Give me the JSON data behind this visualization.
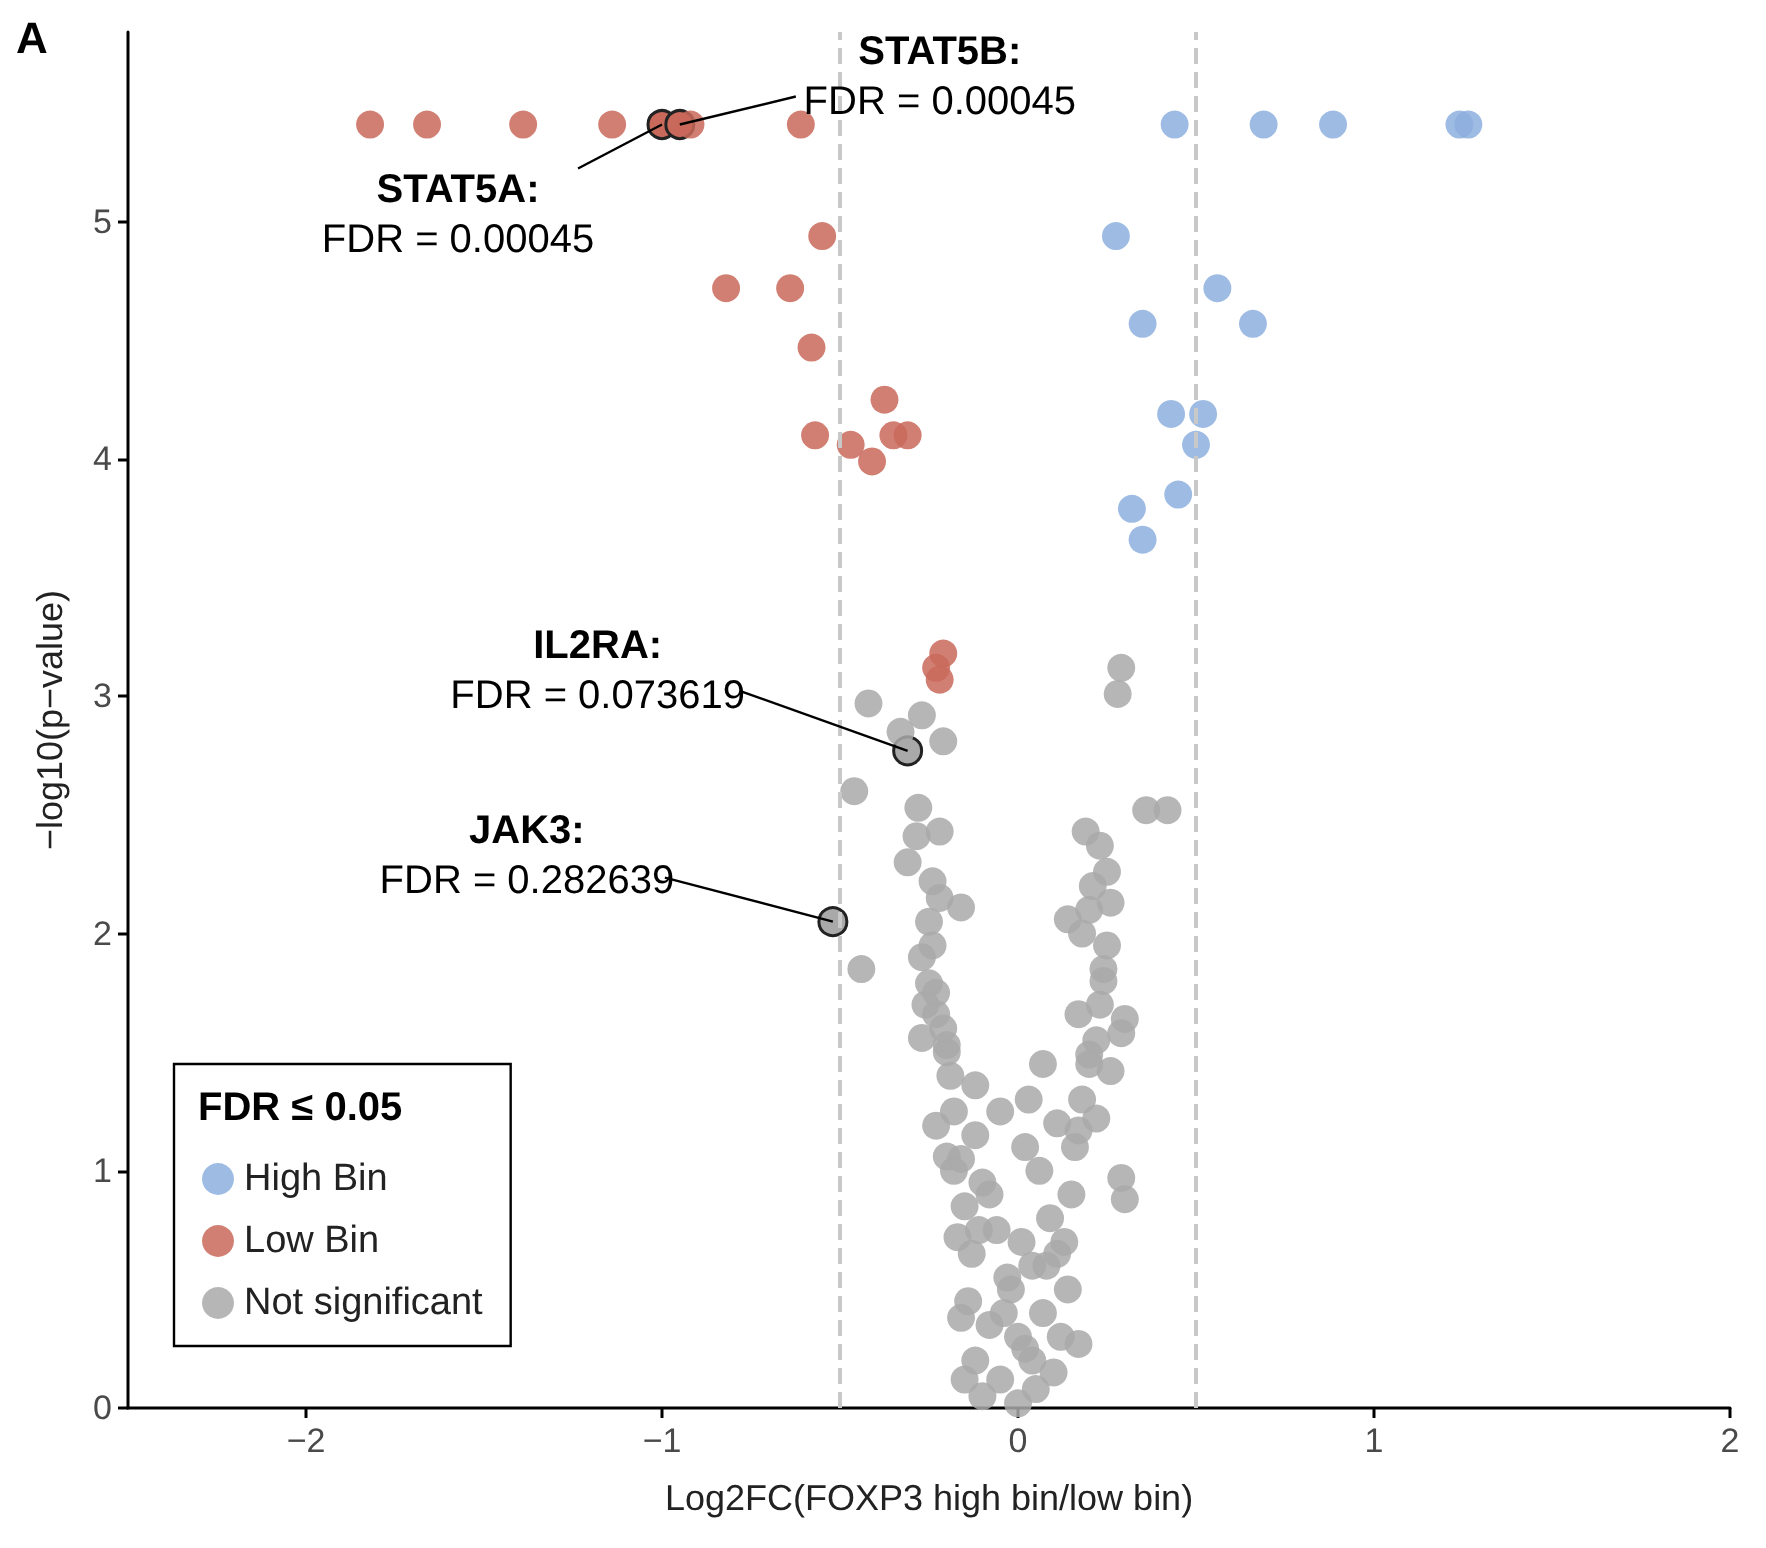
{
  "chart_data": {
    "type": "scatter",
    "xlabel": "Log2FC(FOXP3 high bin/low bin)",
    "ylabel": "−log10(p−value)",
    "legend_title": "FDR ≤ 0.05",
    "legend": "bottom left",
    "grid": false,
    "marker": "circle",
    "xlim": [
      -2.5,
      2
    ],
    "xticks": [
      {
        "value": -2,
        "label": "−2"
      },
      {
        "value": -1,
        "label": "−1"
      },
      0,
      1,
      2
    ],
    "ylim": [
      0,
      5.8
    ],
    "yticks": [
      0,
      1,
      2,
      3,
      4,
      5
    ],
    "series": [
      {
        "name": "High Bin",
        "color": "#8dafdf",
        "x": [
          0.44,
          0.69,
          0.885,
          1.24,
          1.265,
          0.275,
          0.56,
          0.35,
          0.66,
          0.43,
          0.52,
          0.5,
          0.45,
          0.32,
          0.35
        ],
        "values": [
          5.41,
          5.41,
          5.41,
          5.41,
          5.41,
          4.94,
          4.72,
          4.57,
          4.57,
          4.19,
          4.19,
          4.06,
          3.85,
          3.79,
          3.66
        ]
      },
      {
        "name": "Low Bin",
        "color": "#c9695b",
        "x": [
          -1.82,
          -1.66,
          -1.39,
          -1.14,
          -1.0,
          -0.95,
          -0.92,
          -0.61,
          -0.55,
          -0.82,
          -0.64,
          -0.58,
          -0.375,
          -0.57,
          -0.47,
          -0.41,
          -0.35,
          -0.31,
          -0.21,
          -0.23,
          -0.22
        ],
        "values": [
          5.41,
          5.41,
          5.41,
          5.41,
          5.41,
          5.41,
          5.41,
          5.41,
          4.94,
          4.72,
          4.72,
          4.47,
          4.25,
          4.1,
          4.06,
          3.99,
          4.1,
          4.1,
          3.18,
          3.12,
          3.07
        ]
      },
      {
        "name": "Not significant",
        "color": "#a9a9a9",
        "x": [
          -0.31,
          -0.52,
          -0.42,
          -0.27,
          -0.33,
          -0.21,
          0.29,
          0.28,
          -0.46,
          0.36,
          0.42,
          -0.28,
          -0.22,
          -0.285,
          -0.31,
          -0.24,
          -0.16,
          -0.44,
          0.19,
          0.23,
          0.25,
          0.26,
          0.14,
          0.18,
          0.3,
          0.29,
          -0.27,
          -0.25,
          -0.23,
          -0.2,
          -0.12,
          -0.26,
          -0.27,
          -0.23,
          -0.2,
          -0.17,
          -0.16,
          -0.15,
          0.26,
          0.22,
          0.29,
          0.3,
          0.17,
          0.07,
          0.02,
          0.17,
          0.2,
          0.17,
          -0.1,
          0.0,
          0.05,
          -0.05,
          0.1,
          -0.12,
          0.02,
          0.12,
          -0.08,
          0.07,
          -0.14,
          0.14,
          -0.03,
          0.04,
          -0.13,
          0.13,
          -0.06,
          0.09,
          -0.15,
          0.15,
          -0.1,
          0.06,
          -0.16,
          0.16,
          -0.12,
          0.11,
          -0.18,
          0.18,
          -0.05,
          0.03,
          -0.19,
          0.2,
          -0.2,
          0.22,
          -0.21,
          0.23,
          -0.23,
          0.24,
          -0.24,
          0.25,
          -0.25,
          0.2,
          -0.22,
          0.21,
          -0.02,
          0.01,
          -0.08,
          0.08,
          0.0,
          -0.04,
          0.04,
          0.11,
          -0.11,
          0.24,
          -0.18
        ],
        "values": [
          2.77,
          2.05,
          2.97,
          2.92,
          2.85,
          2.81,
          3.12,
          3.01,
          2.6,
          2.52,
          2.52,
          2.53,
          2.43,
          2.41,
          2.3,
          2.22,
          2.11,
          1.85,
          2.43,
          2.37,
          2.26,
          2.13,
          2.06,
          2.0,
          1.64,
          1.58,
          1.9,
          1.79,
          1.66,
          1.53,
          1.36,
          1.7,
          1.56,
          1.19,
          1.06,
          0.72,
          0.38,
          0.12,
          1.42,
          1.22,
          0.97,
          0.88,
          1.17,
          1.45,
          1.1,
          1.66,
          1.49,
          0.27,
          0.05,
          0.02,
          0.08,
          0.12,
          0.15,
          0.2,
          0.25,
          0.3,
          0.35,
          0.4,
          0.45,
          0.5,
          0.55,
          0.6,
          0.65,
          0.7,
          0.75,
          0.8,
          0.85,
          0.9,
          0.95,
          1.0,
          1.05,
          1.1,
          1.15,
          1.2,
          1.25,
          1.3,
          1.25,
          1.3,
          1.4,
          1.45,
          1.5,
          1.55,
          1.6,
          1.7,
          1.75,
          1.85,
          1.95,
          1.95,
          2.05,
          2.1,
          2.15,
          2.2,
          0.5,
          0.7,
          0.9,
          0.6,
          0.3,
          0.4,
          0.2,
          0.65,
          0.75,
          1.8,
          1.0
        ]
      }
    ],
    "ref_lines": [
      {
        "axis": "x",
        "value": -0.5,
        "color": "#c8c8c8",
        "line_style": "dashed"
      },
      {
        "axis": "x",
        "value": 0.5,
        "color": "#c8c8c8",
        "line_style": "dashed"
      }
    ],
    "annotations": [
      {
        "text": "STAT5B:\nFDR = 0.00045",
        "x": -0.95,
        "y": 5.41
      },
      {
        "text": "STAT5A:\nFDR = 0.00045",
        "x": -1.0,
        "y": 5.41
      },
      {
        "text": "IL2RA:\nFDR = 0.073619",
        "x": -0.31,
        "y": 2.77
      },
      {
        "text": "JAK3:\nFDR = 0.282639",
        "x": -0.52,
        "y": 2.05
      },
      "A"
    ]
  }
}
